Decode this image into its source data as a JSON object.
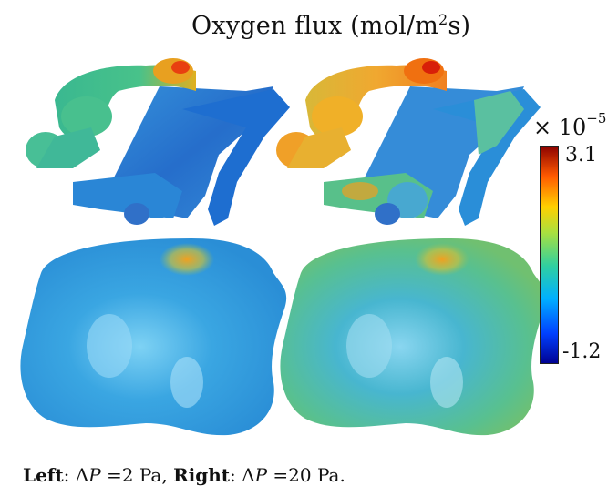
{
  "title": {
    "text_prefix": "Oxygen flux (mol/m",
    "superscript": "2",
    "text_suffix": "s)"
  },
  "colorbar": {
    "multiplier_symbol": "×",
    "multiplier_base": "10",
    "multiplier_exponent": "−5",
    "max_label": "3.1",
    "min_label": "-1.2",
    "colors": [
      "#00008f",
      "#0060ff",
      "#00c8ff",
      "#3dd28c",
      "#c8dc2a",
      "#ffb000",
      "#ff5000",
      "#900000"
    ]
  },
  "panels": {
    "left": "ΔP = 2 Pa",
    "right": "ΔP = 20 Pa"
  },
  "caption": {
    "left_label": "Left",
    "left_sep": ": Δ",
    "p_symbol": "P",
    "left_value": " =2 Pa, ",
    "right_label": "Right",
    "right_sep": ": Δ",
    "right_value": " =20 Pa."
  }
}
